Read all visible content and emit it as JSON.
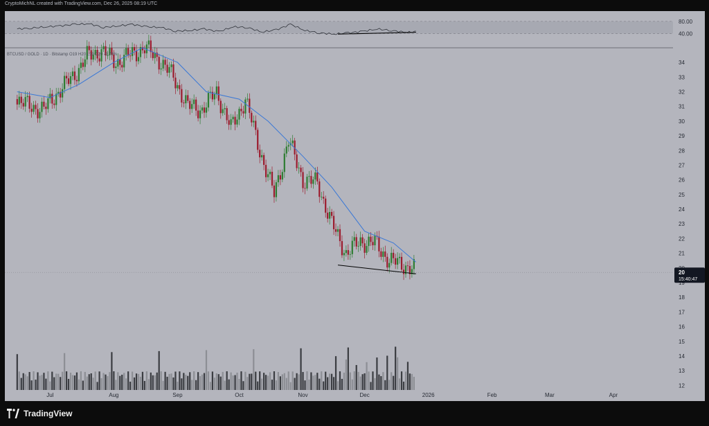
{
  "header": {
    "attribution": "CryptoMichNL created with TradingView.com, Dec 26, 2025 08:19 UTC"
  },
  "footer": {
    "brand": "TradingView"
  },
  "colors": {
    "chart_bg": "#b4b5bd",
    "up": "#2e7d32",
    "down": "#9c1c2e",
    "ma": "#3a78d6",
    "rsi_line": "#30333a",
    "rsi_band": "#a7a9b2",
    "volume_dark": "#3b3d42",
    "volume_light": "#8d8f95"
  },
  "chart_data": [
    {
      "type": "line",
      "indicator": "RSI",
      "ylim": [
        0,
        100
      ],
      "yticks": [
        "80.00",
        "40.00"
      ],
      "band": [
        40,
        80
      ],
      "x": [
        "2025-06-15",
        "2025-06-22",
        "2025-06-29",
        "2025-07-06",
        "2025-07-13",
        "2025-07-20",
        "2025-07-27",
        "2025-08-03",
        "2025-08-10",
        "2025-08-17",
        "2025-08-24",
        "2025-08-31",
        "2025-09-07",
        "2025-09-14",
        "2025-09-21",
        "2025-09-28",
        "2025-10-05",
        "2025-10-12",
        "2025-10-19",
        "2025-10-26",
        "2025-11-02",
        "2025-11-09",
        "2025-11-16",
        "2025-11-23",
        "2025-11-30",
        "2025-12-07",
        "2025-12-14",
        "2025-12-21",
        "2025-12-26"
      ],
      "values": [
        55,
        58,
        62,
        65,
        70,
        72,
        60,
        65,
        70,
        62,
        60,
        48,
        50,
        55,
        46,
        62,
        60,
        45,
        52,
        70,
        50,
        42,
        38,
        42,
        47,
        55,
        50,
        44,
        45
      ],
      "trendline": [
        [
          "2025-11-18",
          38
        ],
        [
          "2025-12-26",
          44
        ]
      ]
    },
    {
      "type": "candlestick",
      "symbol": "BTCUSD / GOLD · 1D · Bitstamp",
      "ohlc_text": "O19 H20 L19 C20 -0.79%",
      "last_price": "20",
      "countdown": "15:40:47",
      "yticks": [
        12,
        13,
        14,
        15,
        16,
        17,
        18,
        19,
        20,
        21,
        22,
        23,
        24,
        25,
        26,
        27,
        28,
        29,
        30,
        31,
        32,
        33,
        34
      ],
      "ylim": [
        11.5,
        34.9
      ],
      "xticks": [
        "Jul",
        "Aug",
        "Sep",
        "Oct",
        "Nov",
        "Dec",
        "2026",
        "Feb",
        "Mar",
        "Apr"
      ],
      "xtick_dates": [
        "2025-07-01",
        "2025-08-01",
        "2025-09-01",
        "2025-10-01",
        "2025-11-01",
        "2025-12-01",
        "2026-01-01",
        "2026-02-01",
        "2026-03-01",
        "2026-04-01"
      ],
      "x_range": [
        "2025-06-09",
        "2026-04-30"
      ],
      "weekly_closes": {
        "x": [
          "2025-06-15",
          "2025-06-22",
          "2025-06-29",
          "2025-07-06",
          "2025-07-13",
          "2025-07-20",
          "2025-07-27",
          "2025-08-03",
          "2025-08-10",
          "2025-08-17",
          "2025-08-24",
          "2025-08-31",
          "2025-09-07",
          "2025-09-14",
          "2025-09-21",
          "2025-09-28",
          "2025-10-05",
          "2025-10-12",
          "2025-10-19",
          "2025-10-26",
          "2025-11-02",
          "2025-11-09",
          "2025-11-16",
          "2025-11-23",
          "2025-11-30",
          "2025-12-07",
          "2025-12-14",
          "2025-12-21",
          "2025-12-26"
        ],
        "y": [
          31.5,
          31.0,
          30.8,
          32.0,
          33.0,
          34.4,
          34.8,
          34.0,
          34.5,
          35.0,
          34.2,
          33.0,
          31.0,
          30.8,
          32.0,
          29.5,
          31.5,
          28.0,
          25.0,
          28.7,
          26.0,
          25.8,
          23.0,
          21.0,
          21.8,
          21.7,
          20.5,
          20.2,
          19.9
        ]
      },
      "ma_closes": {
        "x": [
          "2025-06-15",
          "2025-07-01",
          "2025-07-15",
          "2025-08-01",
          "2025-08-15",
          "2025-09-01",
          "2025-09-15",
          "2025-10-01",
          "2025-10-15",
          "2025-11-01",
          "2025-11-15",
          "2025-12-01",
          "2025-12-15",
          "2025-12-26"
        ],
        "y": [
          32.0,
          31.6,
          32.5,
          34.0,
          35.0,
          34.0,
          32.0,
          31.5,
          30.0,
          27.6,
          25.5,
          22.5,
          21.7,
          20.4
        ]
      },
      "trendline": [
        [
          "2025-11-18",
          20.2
        ],
        [
          "2025-12-26",
          19.6
        ]
      ]
    },
    {
      "type": "bar",
      "indicator": "Volume",
      "note": "relative volume bars drawn in lower pane"
    }
  ]
}
